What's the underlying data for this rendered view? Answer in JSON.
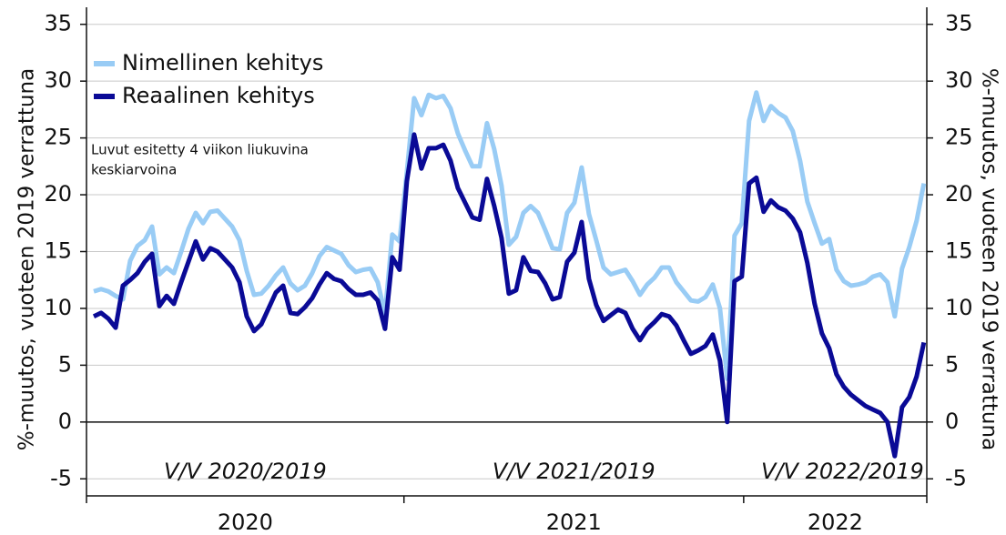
{
  "chart_data": {
    "type": "line",
    "y_label": "%-muutos, vuoteen 2019 verrattuna",
    "y2_label": "%-muutos, vuoteen 2019 verrattuna",
    "annotation": [
      "Luvut esitetty 4 viikon liukuvina",
      "keskiarvoina"
    ],
    "period_labels": [
      "V/V 2020/2019",
      "V/V 2021/2019",
      "V/V 2022/2019"
    ],
    "year_labels": [
      "2020",
      "2021",
      "2022"
    ],
    "xticks": [
      -1,
      42.6,
      89.25,
      114.4
    ],
    "xlim": [
      -1,
      114.4
    ],
    "ylim": [
      -6.5,
      36.5
    ],
    "yticks": [
      -5,
      0,
      5,
      10,
      15,
      20,
      25,
      30,
      35
    ],
    "y2lim": [
      -6.5,
      36.5
    ],
    "y2ticks": [
      -5,
      0,
      5,
      10,
      15,
      20,
      25,
      30,
      35
    ],
    "grid": true,
    "legend": "upper left",
    "series": [
      {
        "name": "Nimellinen kehitys",
        "color": "#99ccf5",
        "values": [
          11.5,
          11.7,
          11.5,
          11.1,
          10.8,
          14.2,
          15.5,
          16.0,
          17.2,
          13.0,
          13.6,
          13.1,
          15.0,
          17.0,
          18.4,
          17.5,
          18.5,
          18.6,
          17.9,
          17.2,
          16.0,
          13.3,
          11.2,
          11.3,
          12.0,
          12.9,
          13.6,
          12.2,
          11.6,
          12.0,
          13.1,
          14.6,
          15.4,
          15.1,
          14.8,
          13.8,
          13.2,
          13.4,
          13.5,
          12.3,
          9.5,
          16.5,
          15.9,
          22.0,
          28.5,
          27.0,
          28.8,
          28.5,
          28.7,
          27.6,
          25.4,
          23.9,
          22.5,
          22.5,
          26.3,
          24.0,
          20.8,
          15.6,
          16.3,
          18.4,
          19.0,
          18.4,
          16.9,
          15.3,
          15.2,
          18.4,
          19.3,
          22.4,
          18.3,
          16.0,
          13.6,
          13.0,
          13.2,
          13.4,
          12.4,
          11.2,
          12.1,
          12.7,
          13.6,
          13.6,
          12.3,
          11.5,
          10.7,
          10.6,
          11.0,
          12.1,
          10.0,
          3.8,
          16.4,
          17.5,
          26.5,
          29.0,
          26.5,
          27.8,
          27.2,
          26.8,
          25.6,
          23.0,
          19.4,
          17.5,
          15.7,
          16.1,
          13.4,
          12.4,
          12.0,
          12.1,
          12.3,
          12.8,
          13.0,
          12.3,
          9.3,
          13.5,
          15.4,
          17.7,
          21.0
        ]
      },
      {
        "name": "Reaalinen kehitys",
        "color": "#0a0a96",
        "values": [
          9.3,
          9.6,
          9.1,
          8.3,
          12.0,
          12.5,
          13.1,
          14.1,
          14.8,
          10.2,
          11.1,
          10.4,
          12.3,
          14.1,
          15.9,
          14.3,
          15.3,
          15.0,
          14.3,
          13.6,
          12.3,
          9.3,
          8.0,
          8.6,
          10.0,
          11.4,
          12.0,
          9.6,
          9.5,
          10.1,
          10.9,
          12.1,
          13.1,
          12.6,
          12.4,
          11.7,
          11.2,
          11.2,
          11.4,
          10.7,
          8.2,
          14.5,
          13.4,
          21.2,
          25.3,
          22.3,
          24.1,
          24.1,
          24.4,
          23.0,
          20.6,
          19.3,
          18.0,
          17.8,
          21.4,
          19.0,
          16.2,
          11.3,
          11.6,
          14.5,
          13.3,
          13.2,
          12.2,
          10.8,
          11.0,
          14.1,
          14.9,
          17.6,
          12.6,
          10.3,
          8.9,
          9.4,
          9.9,
          9.6,
          8.2,
          7.2,
          8.2,
          8.8,
          9.5,
          9.3,
          8.5,
          7.2,
          6.0,
          6.3,
          6.7,
          7.7,
          5.4,
          0.0,
          12.4,
          12.8,
          21.0,
          21.5,
          18.5,
          19.5,
          18.9,
          18.6,
          17.9,
          16.7,
          14.0,
          10.4,
          7.8,
          6.5,
          4.2,
          3.1,
          2.4,
          1.9,
          1.4,
          1.1,
          0.8,
          0.0,
          -3.0,
          1.3,
          2.2,
          4.0,
          7.0
        ]
      }
    ]
  }
}
